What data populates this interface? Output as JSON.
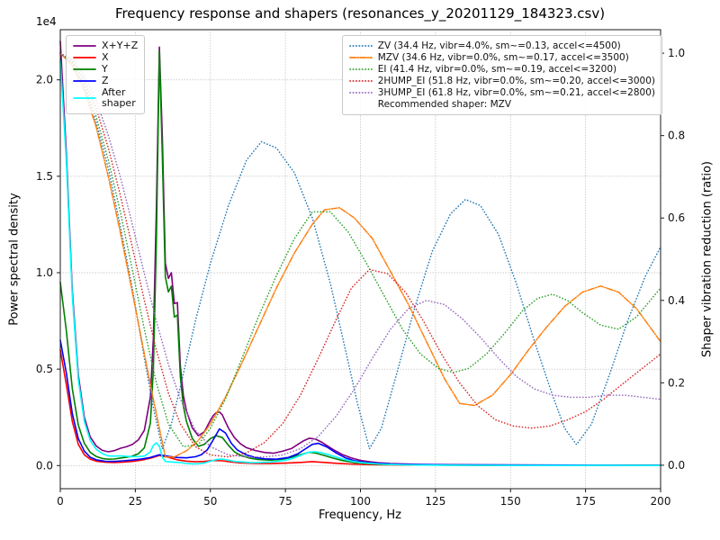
{
  "chart_data": {
    "type": "line",
    "title": "Frequency response and shapers (resonances_y_20201129_184323.csv)",
    "xlabel": "Frequency, Hz",
    "ylabel_left": "Power spectral density",
    "ylabel_right": "Shaper vibration reduction (ratio)",
    "offset_text": "1e4",
    "grid": true,
    "xlim": [
      0,
      200
    ],
    "ylim_left": [
      -1200,
      22600
    ],
    "ylim_right": [
      -0.057,
      1.057
    ],
    "xticks": {
      "values": [
        0,
        25,
        50,
        75,
        100,
        125,
        150,
        175,
        200
      ],
      "labels": [
        "0",
        "25",
        "50",
        "75",
        "100",
        "125",
        "150",
        "175",
        "200"
      ]
    },
    "yticks_left": {
      "values": [
        0,
        5000,
        10000,
        15000,
        20000
      ],
      "labels": [
        "0.0",
        "0.5",
        "1.0",
        "1.5",
        "2.0"
      ]
    },
    "yticks_right": {
      "values": [
        0,
        0.2,
        0.4,
        0.6,
        0.8,
        1.0
      ],
      "labels": [
        "0.0",
        "0.2",
        "0.4",
        "0.6",
        "0.8",
        "1.0"
      ]
    },
    "legend_note": "Recommended shaper: MZV",
    "psd_series": [
      {
        "name": "psd-xyz",
        "label": "X+Y+Z",
        "color": "#800080",
        "style": "solid",
        "axis": "left",
        "x": [
          0,
          2,
          4,
          6,
          8,
          10,
          12,
          14,
          16,
          18,
          20,
          22,
          24,
          26,
          28,
          30,
          31,
          32,
          33,
          34,
          35,
          36,
          37,
          38,
          39,
          40,
          41,
          42,
          44,
          46,
          48,
          50,
          51,
          52,
          53,
          54,
          55,
          56,
          58,
          60,
          62,
          65,
          68,
          71,
          74,
          77,
          79,
          81,
          83,
          85,
          87,
          89,
          91,
          94,
          97,
          100,
          103,
          106,
          110,
          115,
          120,
          130,
          140,
          160,
          180,
          200
        ],
        "y": [
          22000,
          16200,
          9100,
          4700,
          2500,
          1480,
          1010,
          790,
          715,
          775,
          895,
          975,
          1090,
          1330,
          1830,
          3550,
          6600,
          13200,
          21700,
          17000,
          10500,
          9700,
          10000,
          8400,
          8450,
          5150,
          3650,
          2850,
          1950,
          1550,
          1750,
          2350,
          2600,
          2750,
          2780,
          2620,
          2280,
          1950,
          1450,
          1130,
          930,
          780,
          680,
          640,
          740,
          880,
          1080,
          1280,
          1420,
          1370,
          1220,
          1020,
          820,
          570,
          390,
          270,
          195,
          145,
          105,
          78,
          62,
          47,
          36,
          26,
          21,
          18
        ]
      },
      {
        "name": "psd-x",
        "label": "X",
        "color": "#ff0000",
        "style": "solid",
        "axis": "left",
        "x": [
          0,
          2,
          4,
          6,
          8,
          10,
          12,
          15,
          18,
          21,
          24,
          27,
          30,
          33,
          36,
          39,
          42,
          45,
          48,
          51,
          54,
          57,
          60,
          65,
          70,
          75,
          80,
          84,
          88,
          92,
          96,
          100,
          105,
          110,
          120,
          140,
          160,
          180,
          200
        ],
        "y": [
          6000,
          4200,
          2300,
          1100,
          560,
          330,
          230,
          170,
          155,
          175,
          215,
          280,
          380,
          520,
          430,
          300,
          230,
          195,
          215,
          265,
          245,
          185,
          140,
          110,
          100,
          125,
          165,
          205,
          165,
          115,
          82,
          62,
          46,
          36,
          26,
          18,
          14,
          12,
          10
        ]
      },
      {
        "name": "psd-y",
        "label": "Y",
        "color": "#008000",
        "style": "solid",
        "axis": "left",
        "x": [
          0,
          2,
          4,
          6,
          8,
          10,
          12,
          14,
          16,
          18,
          20,
          22,
          24,
          26,
          28,
          30,
          31,
          32,
          33,
          34,
          35,
          36,
          37,
          38,
          39,
          40,
          41,
          42,
          44,
          46,
          48,
          50,
          52,
          54,
          56,
          58,
          60,
          63,
          66,
          70,
          74,
          77,
          80,
          83,
          85,
          88,
          91,
          94,
          98,
          102,
          106,
          110,
          115,
          120,
          130,
          140,
          160,
          180,
          200
        ],
        "y": [
          9500,
          7000,
          4000,
          2100,
          1150,
          680,
          470,
          370,
          330,
          340,
          390,
          430,
          490,
          610,
          920,
          2200,
          5000,
          11500,
          21500,
          16000,
          9800,
          9000,
          9300,
          7700,
          7800,
          4600,
          3100,
          2300,
          1400,
          1000,
          1100,
          1400,
          1550,
          1450,
          1050,
          720,
          530,
          390,
          310,
          280,
          330,
          430,
          570,
          690,
          650,
          520,
          380,
          260,
          160,
          100,
          70,
          50,
          40,
          30,
          22,
          18,
          14,
          12,
          10
        ]
      },
      {
        "name": "psd-z",
        "label": "Z",
        "color": "#0000ff",
        "style": "solid",
        "axis": "left",
        "x": [
          0,
          2,
          4,
          6,
          8,
          10,
          12,
          15,
          18,
          21,
          24,
          27,
          30,
          33,
          36,
          39,
          42,
          45,
          47,
          49,
          51,
          53,
          55,
          57,
          59,
          62,
          65,
          68,
          72,
          76,
          79,
          82,
          84,
          86,
          89,
          92,
          95,
          98,
          102,
          106,
          110,
          115,
          120,
          130,
          140,
          160,
          180,
          200
        ],
        "y": [
          6500,
          4800,
          2700,
          1400,
          750,
          430,
          300,
          225,
          215,
          245,
          285,
          335,
          420,
          560,
          480,
          420,
          400,
          455,
          560,
          820,
          1350,
          1900,
          1700,
          1150,
          800,
          550,
          420,
          350,
          330,
          420,
          600,
          900,
          1100,
          1150,
          950,
          650,
          400,
          250,
          160,
          110,
          80,
          60,
          50,
          38,
          30,
          22,
          16,
          12
        ]
      },
      {
        "name": "psd-after-shaper",
        "label": "After\nshaper",
        "color": "#00ffff",
        "style": "solid",
        "axis": "left",
        "x": [
          0,
          2,
          4,
          6,
          8,
          10,
          12,
          14,
          16,
          18,
          20,
          22,
          24,
          26,
          28,
          30,
          31,
          32,
          33,
          34,
          35,
          36,
          38,
          40,
          42,
          44,
          46,
          48,
          50,
          52,
          54,
          56,
          58,
          60,
          63,
          66,
          70,
          74,
          77,
          79,
          81,
          83,
          85,
          87,
          89,
          91,
          94,
          97,
          100,
          103,
          106,
          110,
          115,
          120,
          130,
          140,
          160,
          180,
          200
        ],
        "y": [
          21000,
          15800,
          8800,
          4450,
          2300,
          1300,
          840,
          620,
          500,
          490,
          505,
          480,
          460,
          465,
          495,
          710,
          1050,
          1180,
          1000,
          430,
          215,
          195,
          170,
          155,
          105,
          88,
          92,
          135,
          230,
          310,
          340,
          275,
          215,
          190,
          160,
          155,
          180,
          250,
          350,
          460,
          590,
          700,
          715,
          665,
          580,
          480,
          340,
          235,
          160,
          115,
          82,
          56,
          39,
          29,
          17,
          11,
          5,
          9,
          6
        ]
      }
    ],
    "shaper_series": [
      {
        "name": "shaper-zv",
        "label": "ZV (34.4 Hz, vibr=4.0%, sm~=0.13, accel<=4500)",
        "color": "#1f77b4",
        "style": "dotted",
        "axis": "right",
        "x": [
          0,
          4,
          8,
          12,
          16,
          20,
          24,
          28,
          31,
          34,
          37,
          40,
          45,
          50,
          56,
          62,
          67,
          72,
          78,
          84,
          90,
          95,
          99,
          103,
          107,
          112,
          118,
          124,
          130,
          135,
          140,
          146,
          152,
          158,
          164,
          168,
          172,
          177,
          183,
          189,
          195,
          200
        ],
        "y": [
          1.0,
          0.975,
          0.92,
          0.83,
          0.72,
          0.58,
          0.43,
          0.26,
          0.14,
          0.04,
          0.1,
          0.19,
          0.35,
          0.49,
          0.63,
          0.74,
          0.785,
          0.77,
          0.71,
          0.6,
          0.44,
          0.28,
          0.15,
          0.04,
          0.09,
          0.22,
          0.38,
          0.52,
          0.61,
          0.645,
          0.63,
          0.56,
          0.44,
          0.3,
          0.17,
          0.09,
          0.05,
          0.1,
          0.22,
          0.35,
          0.46,
          0.53
        ]
      },
      {
        "name": "shaper-mzv",
        "label": "MZV (34.6 Hz, vibr=0.0%, sm~=0.17, accel<=3500)",
        "color": "#ff7f0e",
        "style": "dashdot",
        "axis": "right",
        "x": [
          0,
          4,
          8,
          12,
          16,
          20,
          24,
          28,
          31,
          35,
          38,
          42,
          46,
          50,
          55,
          60,
          66,
          72,
          78,
          84,
          88,
          93,
          98,
          104,
          110,
          116,
          122,
          128,
          133,
          138,
          144,
          150,
          156,
          162,
          168,
          174,
          180,
          186,
          192,
          200
        ],
        "y": [
          1.0,
          0.97,
          0.91,
          0.82,
          0.7,
          0.565,
          0.42,
          0.27,
          0.16,
          0.02,
          0.02,
          0.035,
          0.06,
          0.1,
          0.165,
          0.24,
          0.335,
          0.43,
          0.515,
          0.585,
          0.62,
          0.625,
          0.6,
          0.55,
          0.47,
          0.39,
          0.3,
          0.21,
          0.15,
          0.145,
          0.17,
          0.22,
          0.28,
          0.335,
          0.385,
          0.42,
          0.435,
          0.42,
          0.38,
          0.3
        ]
      },
      {
        "name": "shaper-ei",
        "label": "EI (41.4 Hz, vibr=0.0%, sm~=0.19, accel<=3200)",
        "color": "#2ca02c",
        "style": "dotted",
        "axis": "right",
        "x": [
          0,
          4,
          8,
          12,
          16,
          20,
          24,
          28,
          32,
          36,
          41,
          46,
          50,
          55,
          60,
          66,
          72,
          78,
          84,
          90,
          96,
          102,
          108,
          114,
          120,
          126,
          131,
          136,
          142,
          148,
          154,
          159,
          164,
          169,
          174,
          180,
          186,
          192,
          200
        ],
        "y": [
          1.0,
          0.975,
          0.925,
          0.845,
          0.74,
          0.615,
          0.475,
          0.33,
          0.2,
          0.1,
          0.045,
          0.05,
          0.09,
          0.16,
          0.25,
          0.36,
          0.46,
          0.55,
          0.615,
          0.615,
          0.565,
          0.49,
          0.41,
          0.33,
          0.27,
          0.235,
          0.225,
          0.235,
          0.27,
          0.32,
          0.375,
          0.405,
          0.415,
          0.4,
          0.37,
          0.34,
          0.33,
          0.36,
          0.43
        ]
      },
      {
        "name": "shaper-2hump-ei",
        "label": "2HUMP_EI (51.8 Hz, vibr=0.0%, sm~=0.20, accel<=3000)",
        "color": "#d62728",
        "style": "dotted",
        "axis": "right",
        "x": [
          0,
          4,
          8,
          12,
          16,
          20,
          24,
          28,
          32,
          36,
          40,
          45,
          50,
          56,
          62,
          68,
          74,
          80,
          86,
          92,
          97,
          103,
          109,
          115,
          121,
          127,
          133,
          139,
          145,
          151,
          157,
          163,
          169,
          175,
          181,
          187,
          193,
          200
        ],
        "y": [
          1.0,
          0.98,
          0.935,
          0.865,
          0.77,
          0.655,
          0.53,
          0.4,
          0.28,
          0.175,
          0.1,
          0.045,
          0.025,
          0.02,
          0.03,
          0.055,
          0.1,
          0.17,
          0.26,
          0.355,
          0.43,
          0.475,
          0.465,
          0.42,
          0.35,
          0.27,
          0.2,
          0.145,
          0.11,
          0.095,
          0.09,
          0.095,
          0.11,
          0.13,
          0.16,
          0.195,
          0.23,
          0.27
        ]
      },
      {
        "name": "shaper-3hump-ei",
        "label": "3HUMP_EI (61.8 Hz, vibr=0.0%, sm~=0.21, accel<=2800)",
        "color": "#9467bd",
        "style": "dotted",
        "axis": "right",
        "x": [
          0,
          4,
          8,
          12,
          16,
          20,
          24,
          28,
          32,
          36,
          40,
          45,
          50,
          56,
          62,
          68,
          74,
          80,
          86,
          92,
          98,
          104,
          110,
          116,
          122,
          128,
          134,
          140,
          146,
          152,
          158,
          164,
          170,
          176,
          182,
          188,
          194,
          200
        ],
        "y": [
          1.0,
          0.985,
          0.945,
          0.885,
          0.8,
          0.7,
          0.585,
          0.465,
          0.35,
          0.245,
          0.16,
          0.085,
          0.045,
          0.025,
          0.02,
          0.02,
          0.025,
          0.04,
          0.07,
          0.12,
          0.185,
          0.26,
          0.33,
          0.38,
          0.4,
          0.39,
          0.355,
          0.31,
          0.26,
          0.215,
          0.185,
          0.17,
          0.165,
          0.165,
          0.17,
          0.17,
          0.165,
          0.16
        ]
      }
    ],
    "grid_color": "#b0b0b0",
    "spine_color": "#1a1a1a"
  }
}
